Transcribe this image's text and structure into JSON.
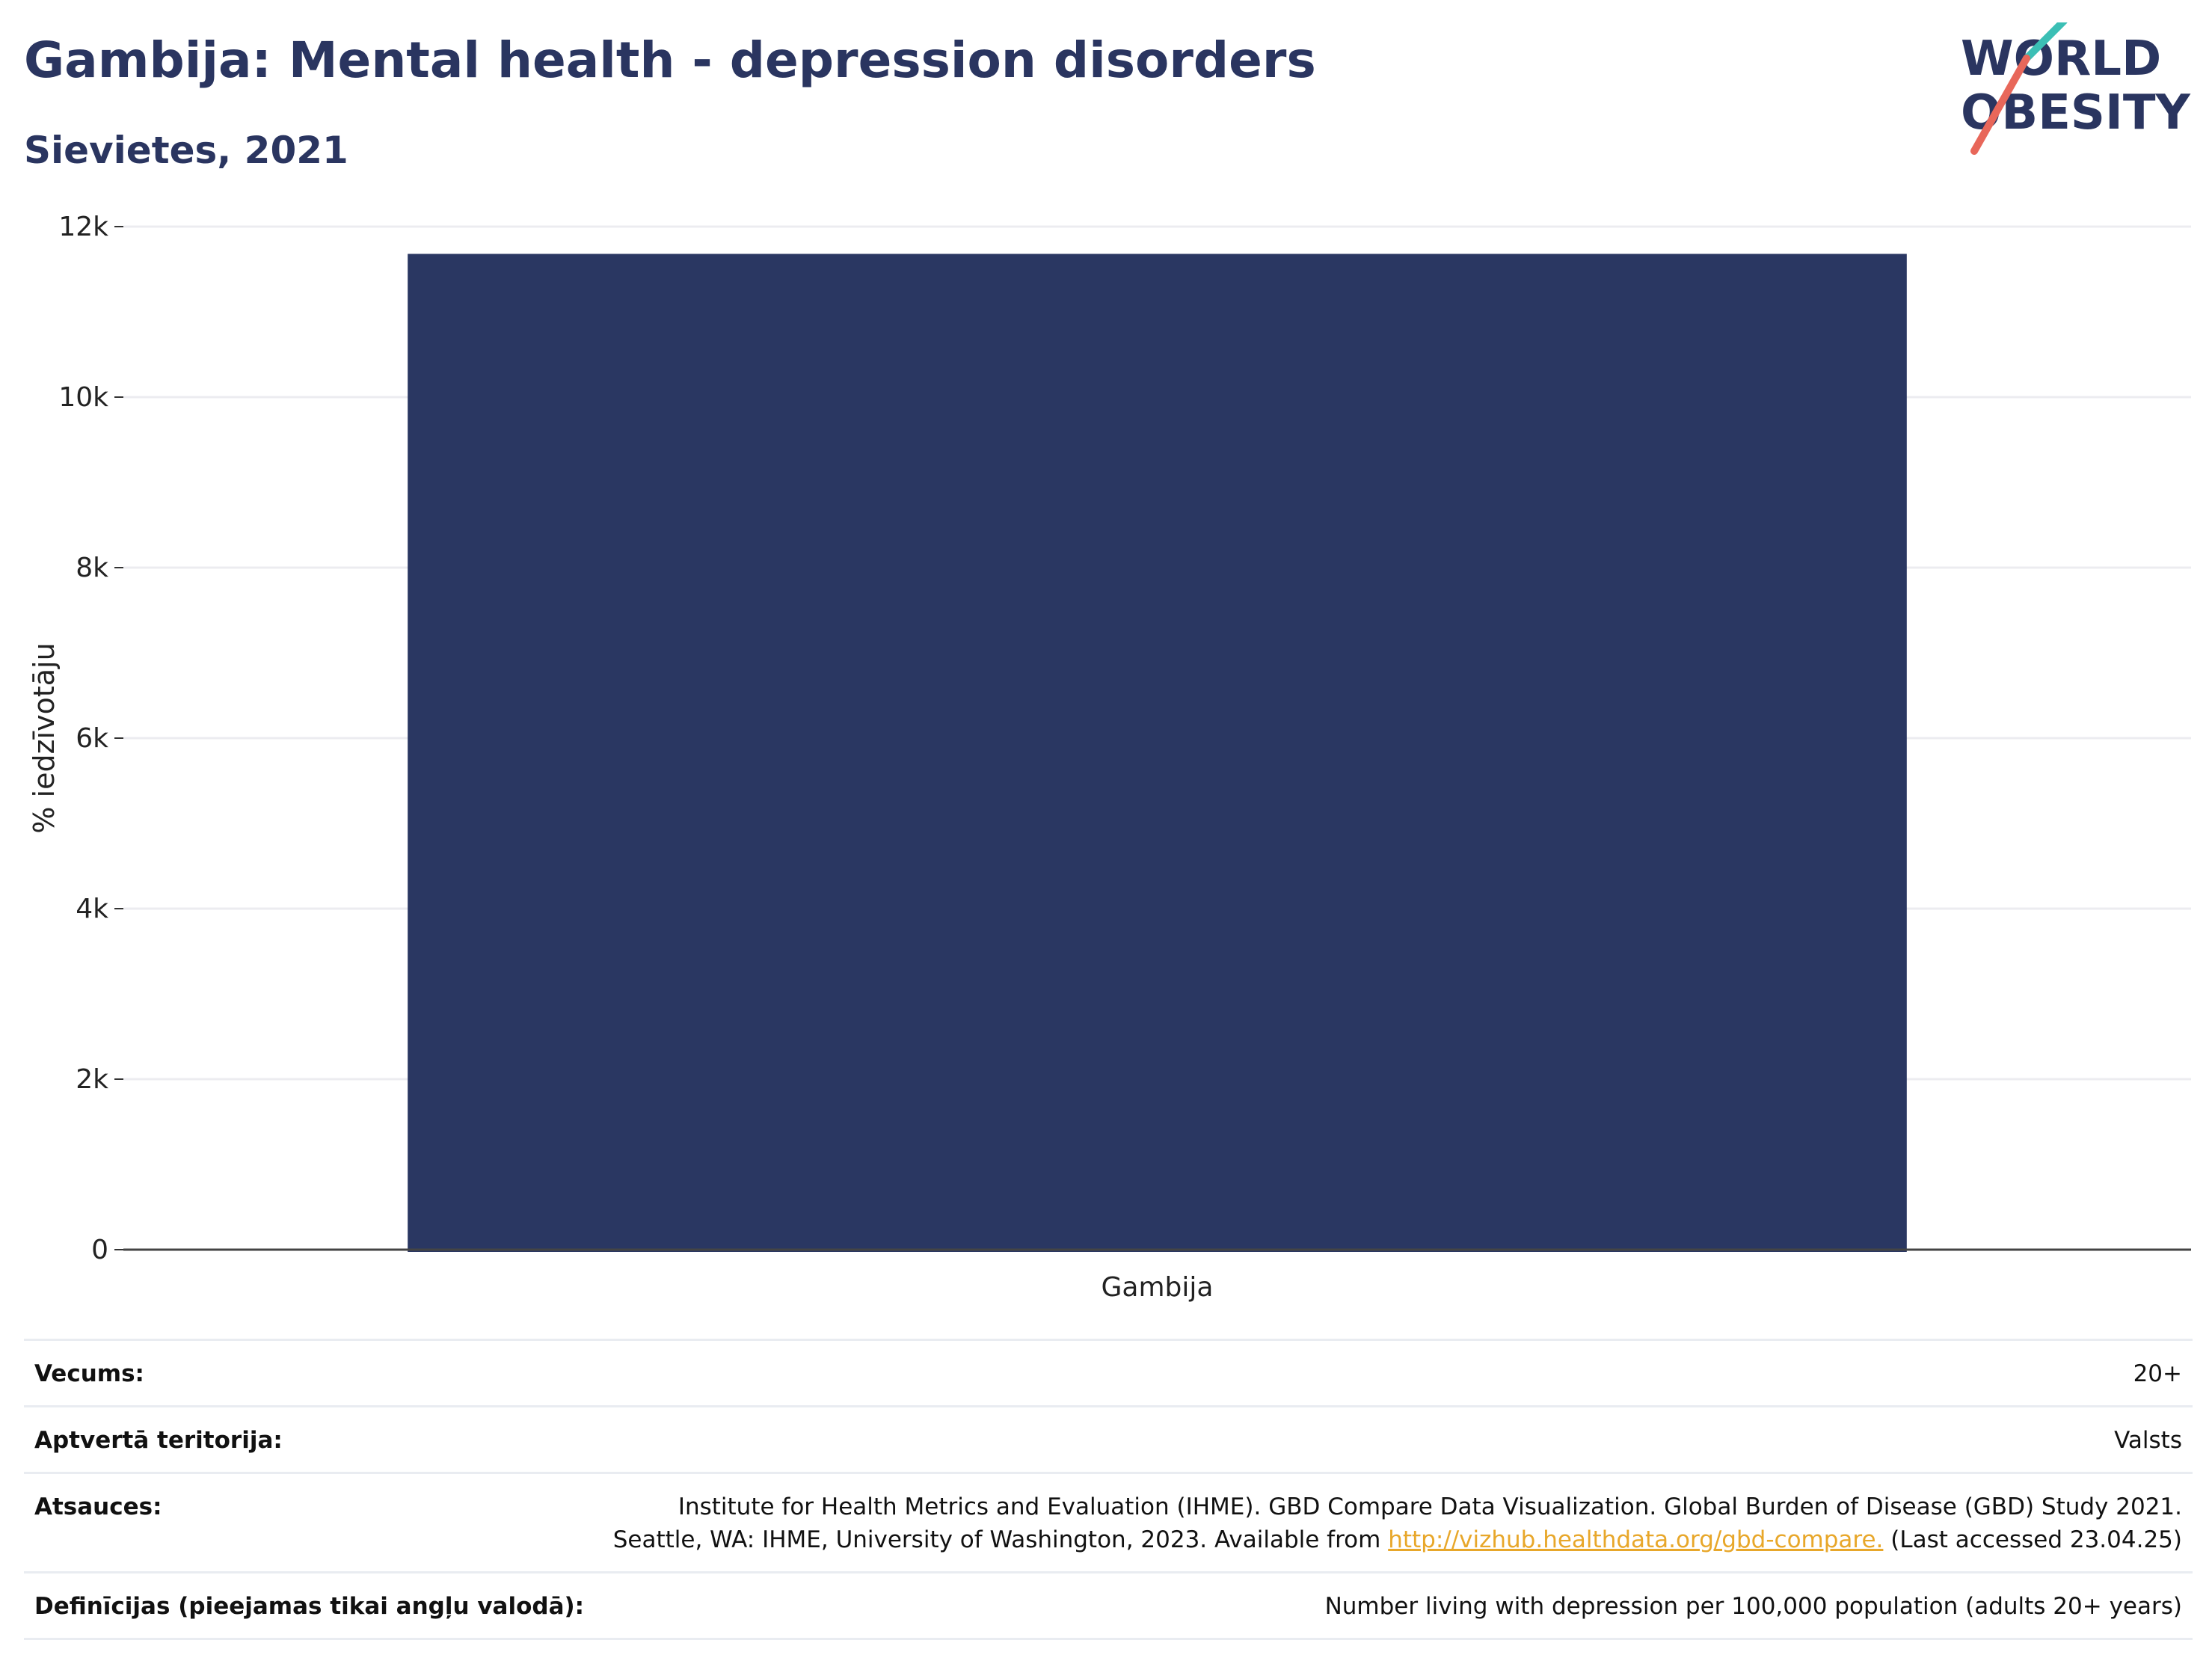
{
  "header": {
    "title": "Gambija: Mental health - depression disorders",
    "subtitle": "Sievietes, 2021"
  },
  "logo": {
    "line1": "WORLD",
    "line2": "OBESITY",
    "colors": {
      "text": "#2a3560",
      "slash_top": "#3bbfb5",
      "slash_bottom": "#e8675a"
    }
  },
  "chart_data": {
    "type": "bar",
    "categories": [
      "Gambija"
    ],
    "values": [
      11680
    ],
    "ylabel": "% iedzīvotāju",
    "xlabel": "",
    "ylim": [
      0,
      12000
    ],
    "yticks": [
      0,
      2000,
      4000,
      6000,
      8000,
      10000,
      12000
    ],
    "ytick_labels": [
      "0",
      "2k",
      "4k",
      "6k",
      "8k",
      "10k",
      "12k"
    ],
    "grid": true,
    "bar_color": "#2a3762"
  },
  "meta": {
    "rows": [
      {
        "key": "Vecums:",
        "value": "20+"
      },
      {
        "key": "Aptvertā teritorija:",
        "value": "Valsts"
      },
      {
        "key": "Atsauces:",
        "value_line1": "Institute for Health Metrics and Evaluation (IHME). GBD Compare Data Visualization. Global Burden of Disease (GBD) Study 2021.",
        "value_line2_pre": "Seattle, WA: IHME, University of Washington, 2023. Available from ",
        "link": "http://vizhub.healthdata.org/gbd-compare.",
        "value_line2_post": " (Last accessed 23.04.25)"
      },
      {
        "key": "Definīcijas (pieejamas tikai angļu valodā):",
        "value": "Number living with depression per 100,000 population (adults 20+ years)"
      }
    ]
  }
}
